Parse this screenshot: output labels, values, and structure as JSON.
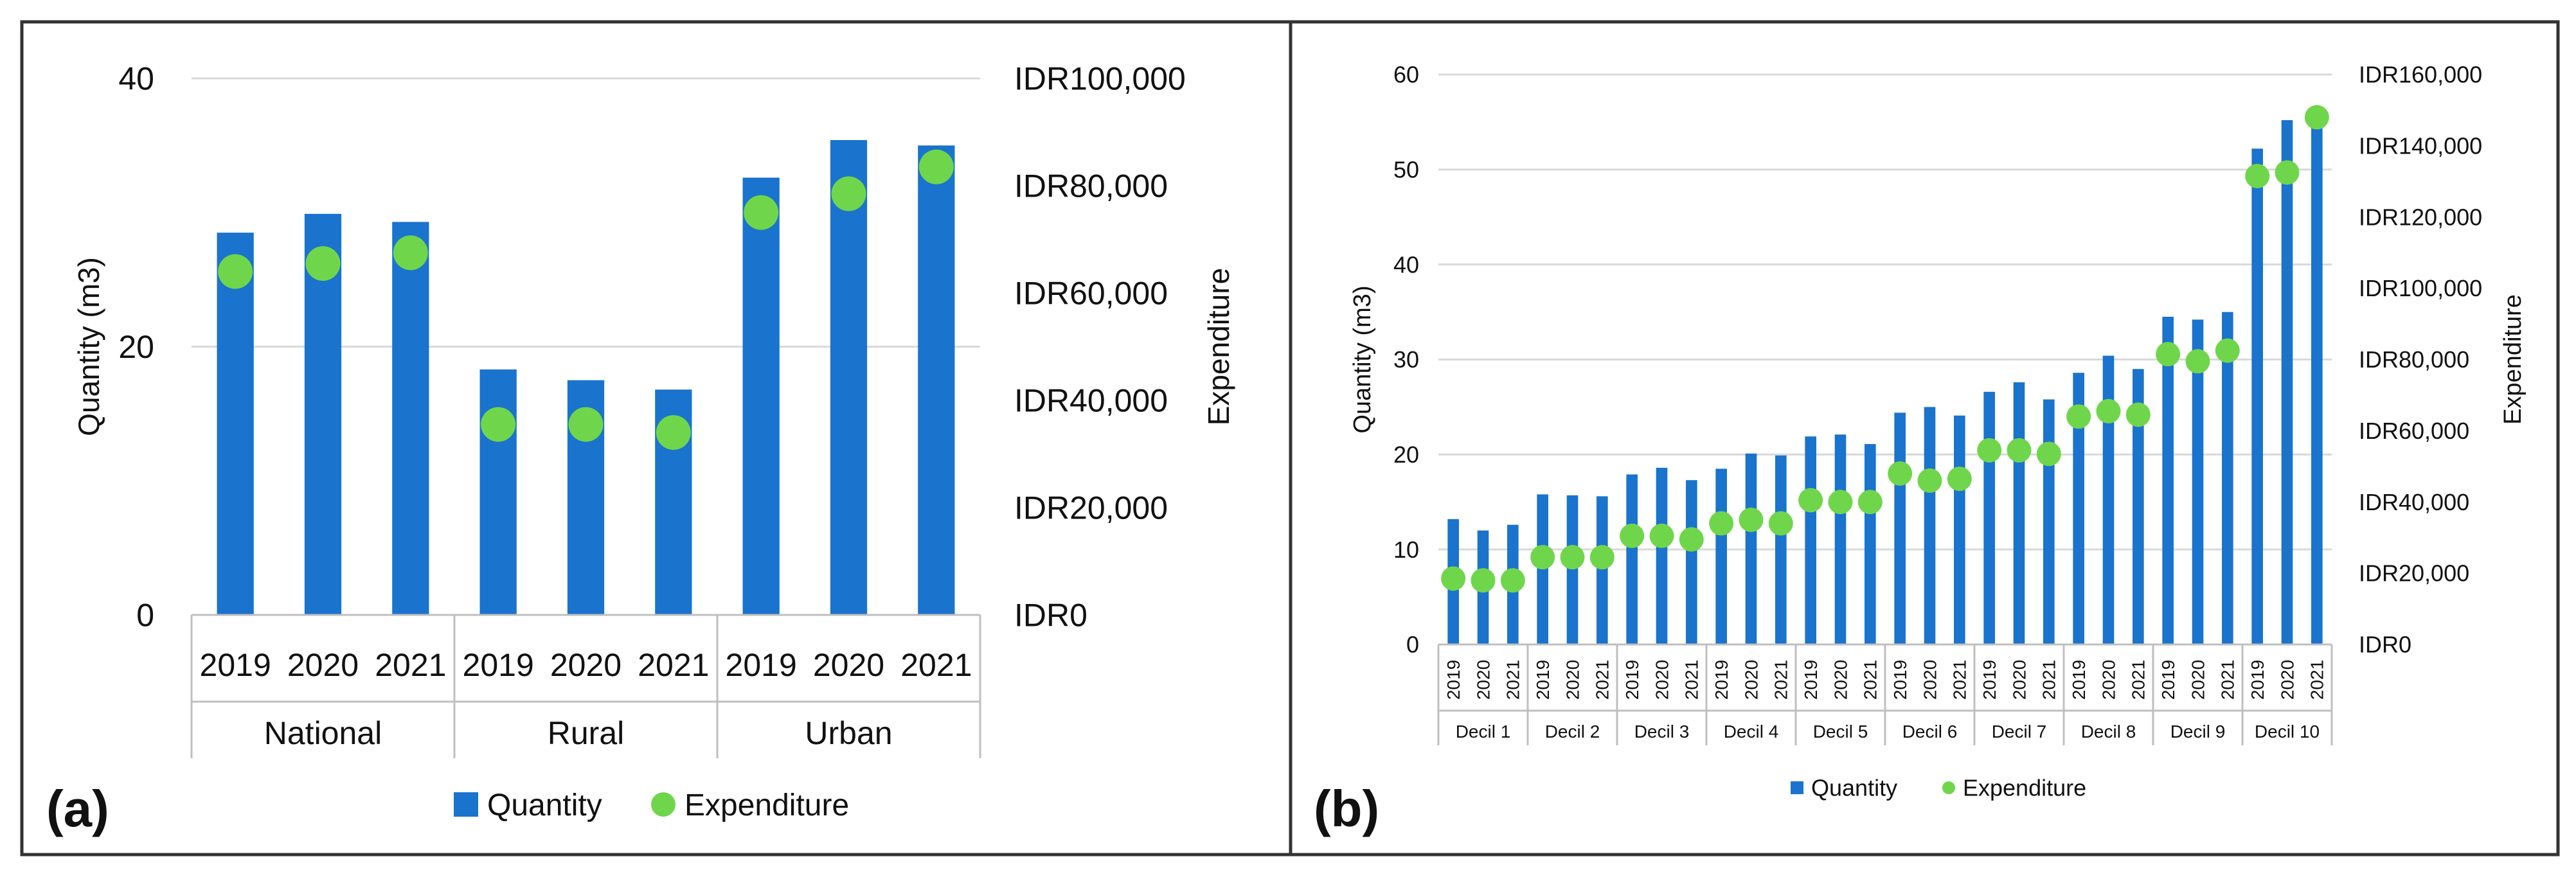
{
  "colors": {
    "quantity": "#1a73cc",
    "expenditure": "#6fd64b",
    "grid": "#d9d9d9",
    "axis": "#bfbfbf",
    "frame": "#333333"
  },
  "panels": [
    {
      "tag": "(a)"
    },
    {
      "tag": "(b)"
    }
  ],
  "chart_data": [
    {
      "type": "bar",
      "panel": "(a)",
      "categories": [
        "2019",
        "2020",
        "2021",
        "2019",
        "2020",
        "2021",
        "2019",
        "2020",
        "2021"
      ],
      "groups": [
        {
          "label": "National",
          "count": 3
        },
        {
          "label": "Rural",
          "count": 3
        },
        {
          "label": "Urban",
          "count": 3
        }
      ],
      "series": [
        {
          "name": "Quantity",
          "kind": "bar",
          "axis": "left",
          "values": [
            28.5,
            29.9,
            29.3,
            18.3,
            17.5,
            16.8,
            32.6,
            35.4,
            35.0
          ]
        },
        {
          "name": "Expenditure",
          "kind": "marker",
          "axis": "right",
          "values": [
            64000,
            65500,
            67500,
            35500,
            35500,
            34000,
            75000,
            78500,
            83500
          ]
        }
      ],
      "ylabel": "Quantity (m3)",
      "y2label": "Expenditure",
      "ylim": [
        0,
        40
      ],
      "yticks": [
        "0",
        "20",
        "40"
      ],
      "y2lim": [
        0,
        100000
      ],
      "y2ticks": [
        "IDR0",
        "IDR20,000",
        "IDR40,000",
        "IDR60,000",
        "IDR80,000",
        "IDR100,000"
      ],
      "legend": [
        "Quantity",
        "Expenditure"
      ],
      "legend_position": "bottom"
    },
    {
      "type": "bar",
      "panel": "(b)",
      "categories": [
        "2019",
        "2020",
        "2021",
        "2019",
        "2020",
        "2021",
        "2019",
        "2020",
        "2021",
        "2019",
        "2020",
        "2021",
        "2019",
        "2020",
        "2021",
        "2019",
        "2020",
        "2021",
        "2019",
        "2020",
        "2021",
        "2019",
        "2020",
        "2021",
        "2019",
        "2020",
        "2021",
        "2019",
        "2020",
        "2021"
      ],
      "groups": [
        {
          "label": "Decil 1",
          "count": 3
        },
        {
          "label": "Decil 2",
          "count": 3
        },
        {
          "label": "Decil 3",
          "count": 3
        },
        {
          "label": "Decil 4",
          "count": 3
        },
        {
          "label": "Decil 5",
          "count": 3
        },
        {
          "label": "Decil 6",
          "count": 3
        },
        {
          "label": "Decil 7",
          "count": 3
        },
        {
          "label": "Decil 8",
          "count": 3
        },
        {
          "label": "Decil 9",
          "count": 3
        },
        {
          "label": "Decil 10",
          "count": 3
        }
      ],
      "series": [
        {
          "name": "Quantity",
          "kind": "bar",
          "axis": "left",
          "values": [
            13.2,
            12.0,
            12.6,
            15.8,
            15.7,
            15.6,
            17.9,
            18.6,
            17.3,
            18.5,
            20.1,
            19.9,
            21.9,
            22.1,
            21.1,
            24.4,
            25.0,
            24.1,
            26.6,
            27.6,
            25.8,
            28.6,
            30.4,
            29.0,
            34.5,
            34.2,
            35.0,
            52.2,
            55.2,
            55.5
          ]
        },
        {
          "name": "Expenditure",
          "kind": "marker",
          "axis": "right",
          "values": [
            18500,
            18000,
            18000,
            24500,
            24500,
            24500,
            30500,
            30500,
            29500,
            34000,
            35000,
            34000,
            40500,
            40000,
            40000,
            48000,
            46000,
            46500,
            54500,
            54500,
            53500,
            64000,
            65500,
            64500,
            81500,
            79500,
            82500,
            131500,
            132500,
            148000
          ]
        }
      ],
      "ylabel": "Quantity (m3)",
      "y2label": "Expenditure",
      "ylim": [
        0,
        60
      ],
      "yticks": [
        "0",
        "10",
        "20",
        "30",
        "40",
        "50",
        "60"
      ],
      "y2lim": [
        0,
        160000
      ],
      "y2ticks": [
        "IDR0",
        "IDR20,000",
        "IDR40,000",
        "IDR60,000",
        "IDR80,000",
        "IDR100,000",
        "IDR120,000",
        "IDR140,000",
        "IDR160,000"
      ],
      "legend": [
        "Quantity",
        "Expenditure"
      ],
      "legend_position": "bottom"
    }
  ]
}
